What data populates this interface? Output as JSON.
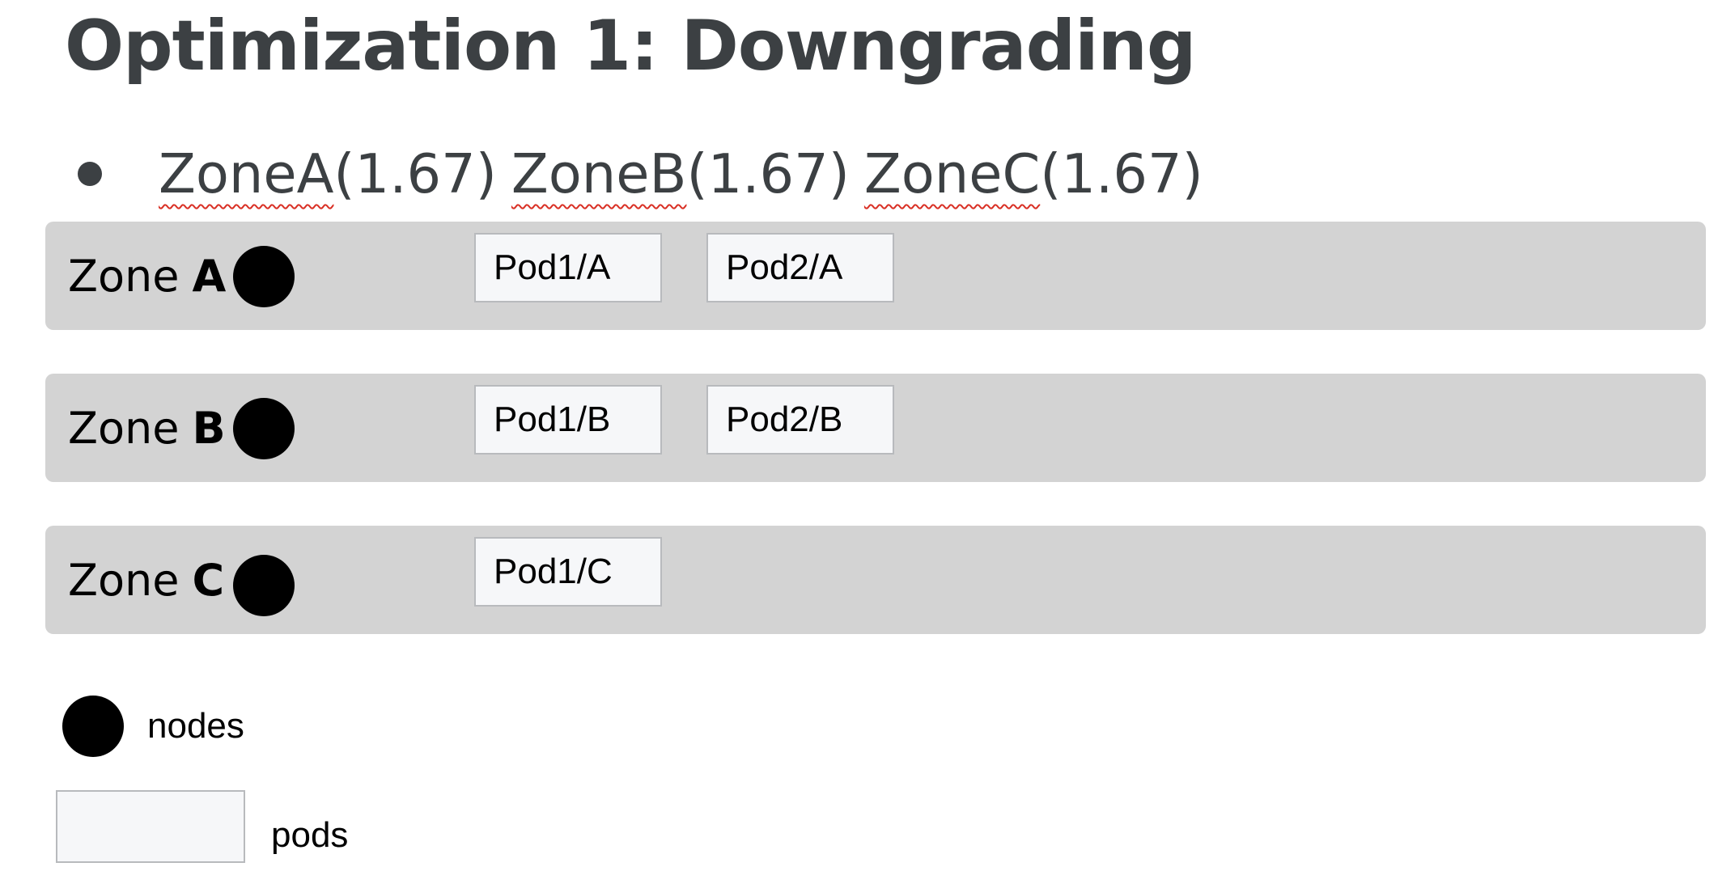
{
  "slide": {
    "title": "Optimization 1: Downgrading",
    "bullet": {
      "items": [
        {
          "name": "ZoneA",
          "value": "(1.67)"
        },
        {
          "name": "ZoneB",
          "value": "(1.67)"
        },
        {
          "name": "ZoneC",
          "value": "(1.67)"
        }
      ]
    }
  },
  "zones": [
    {
      "prefix": "Zone",
      "letter": "A",
      "pods": [
        "Pod1/A",
        "Pod2/A"
      ]
    },
    {
      "prefix": "Zone",
      "letter": "B",
      "pods": [
        "Pod1/B",
        "Pod2/B"
      ]
    },
    {
      "prefix": "Zone",
      "letter": "C",
      "pods": [
        "Pod1/C"
      ]
    }
  ],
  "legend": {
    "node_label": "nodes",
    "pod_label": "pods"
  },
  "colors": {
    "zone_background": "#d3d3d3",
    "pod_fill": "#f6f7f9",
    "pod_border": "#b8babd",
    "node": "#000000",
    "title_text": "#3c4043",
    "spellcheck_underline": "#d93025"
  }
}
